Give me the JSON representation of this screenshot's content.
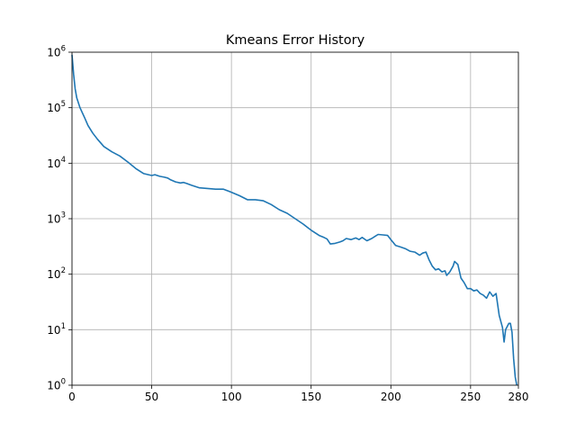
{
  "chart_data": {
    "type": "line",
    "title": "Kmeans Error History",
    "xlabel": "",
    "ylabel": "",
    "xlim": [
      0,
      280
    ],
    "ylim": [
      1,
      1000000
    ],
    "yscale": "log",
    "grid": true,
    "x_ticks": [
      0,
      50,
      100,
      150,
      200,
      250,
      280
    ],
    "y_ticks": [
      {
        "value": 1,
        "base": "10",
        "exp": "0"
      },
      {
        "value": 10,
        "base": "10",
        "exp": "1"
      },
      {
        "value": 100,
        "base": "10",
        "exp": "2"
      },
      {
        "value": 1000,
        "base": "10",
        "exp": "3"
      },
      {
        "value": 10000,
        "base": "10",
        "exp": "4"
      },
      {
        "value": 100000,
        "base": "10",
        "exp": "5"
      },
      {
        "value": 1000000,
        "base": "10",
        "exp": "6"
      }
    ],
    "series": [
      {
        "color": "#1f77b4",
        "points": [
          [
            0,
            900000
          ],
          [
            1,
            400000
          ],
          [
            2,
            220000
          ],
          [
            3,
            150000
          ],
          [
            5,
            100000
          ],
          [
            8,
            65000
          ],
          [
            10,
            48000
          ],
          [
            13,
            35000
          ],
          [
            16,
            27000
          ],
          [
            20,
            20000
          ],
          [
            25,
            16000
          ],
          [
            30,
            13500
          ],
          [
            35,
            10500
          ],
          [
            40,
            8000
          ],
          [
            45,
            6500
          ],
          [
            50,
            6000
          ],
          [
            52,
            6200
          ],
          [
            55,
            5800
          ],
          [
            58,
            5600
          ],
          [
            60,
            5400
          ],
          [
            62,
            5000
          ],
          [
            65,
            4600
          ],
          [
            68,
            4400
          ],
          [
            70,
            4500
          ],
          [
            72,
            4300
          ],
          [
            75,
            4000
          ],
          [
            80,
            3600
          ],
          [
            85,
            3500
          ],
          [
            90,
            3400
          ],
          [
            95,
            3400
          ],
          [
            100,
            3000
          ],
          [
            105,
            2600
          ],
          [
            110,
            2200
          ],
          [
            115,
            2200
          ],
          [
            120,
            2100
          ],
          [
            125,
            1800
          ],
          [
            130,
            1450
          ],
          [
            135,
            1250
          ],
          [
            140,
            1000
          ],
          [
            145,
            800
          ],
          [
            150,
            620
          ],
          [
            155,
            500
          ],
          [
            158,
            460
          ],
          [
            160,
            430
          ],
          [
            162,
            350
          ],
          [
            165,
            360
          ],
          [
            168,
            380
          ],
          [
            170,
            400
          ],
          [
            172,
            440
          ],
          [
            175,
            420
          ],
          [
            178,
            450
          ],
          [
            180,
            420
          ],
          [
            182,
            460
          ],
          [
            185,
            400
          ],
          [
            188,
            440
          ],
          [
            190,
            480
          ],
          [
            192,
            520
          ],
          [
            195,
            510
          ],
          [
            198,
            500
          ],
          [
            200,
            420
          ],
          [
            203,
            330
          ],
          [
            206,
            310
          ],
          [
            209,
            290
          ],
          [
            212,
            260
          ],
          [
            215,
            250
          ],
          [
            218,
            220
          ],
          [
            220,
            240
          ],
          [
            222,
            250
          ],
          [
            224,
            180
          ],
          [
            226,
            140
          ],
          [
            228,
            120
          ],
          [
            230,
            125
          ],
          [
            232,
            110
          ],
          [
            234,
            115
          ],
          [
            235,
            95
          ],
          [
            237,
            110
          ],
          [
            239,
            140
          ],
          [
            240,
            170
          ],
          [
            242,
            150
          ],
          [
            244,
            85
          ],
          [
            246,
            70
          ],
          [
            248,
            55
          ],
          [
            250,
            55
          ],
          [
            252,
            50
          ],
          [
            254,
            52
          ],
          [
            256,
            45
          ],
          [
            258,
            42
          ],
          [
            260,
            37
          ],
          [
            262,
            48
          ],
          [
            264,
            40
          ],
          [
            266,
            45
          ],
          [
            268,
            18
          ],
          [
            270,
            11
          ],
          [
            271,
            6
          ],
          [
            272,
            10
          ],
          [
            274,
            13
          ],
          [
            275,
            13
          ],
          [
            276,
            9
          ],
          [
            277,
            3
          ],
          [
            278,
            1.4
          ],
          [
            279,
            1
          ]
        ]
      }
    ]
  }
}
